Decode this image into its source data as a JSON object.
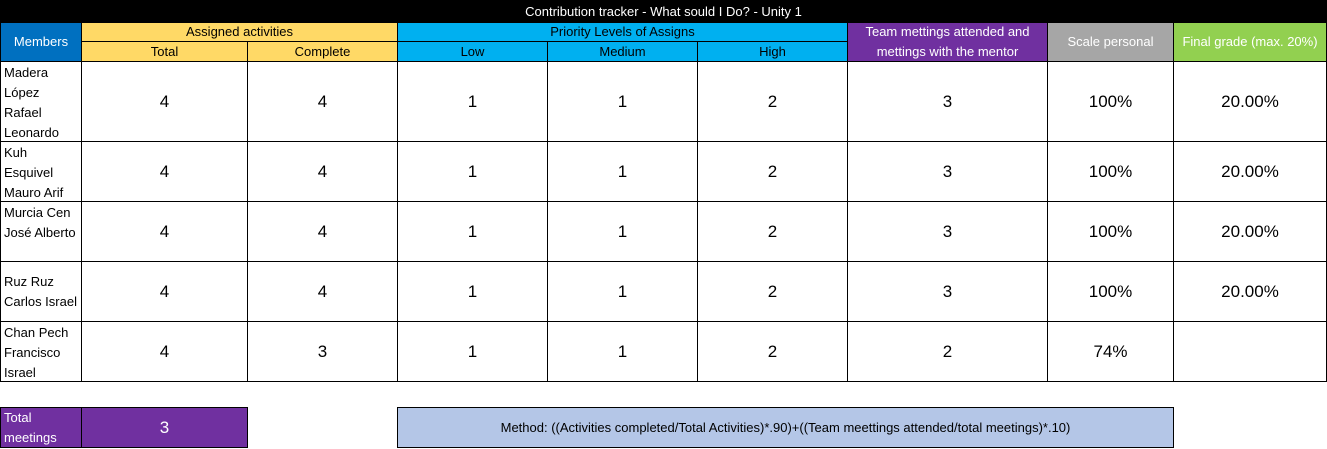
{
  "title": "Contribution tracker - What sould I Do? - Unity 1",
  "headers": {
    "members": "Members",
    "assigned_activities": "Assigned activities",
    "total": "Total",
    "complete": "Complete",
    "priority_levels": "Priority Levels of Assigns",
    "low": "Low",
    "medium": "Medium",
    "high": "High",
    "team_meetings": "Team mettings attended and mettings with the mentor",
    "scale_personal": "Scale personal",
    "final_grade": "Final grade (max. 20%)"
  },
  "rows": [
    {
      "member": "Madera López Rafael Leonardo",
      "total": "4",
      "complete": "4",
      "low": "1",
      "medium": "1",
      "high": "2",
      "meetings": "3",
      "scale": "100%",
      "grade": "20.00%"
    },
    {
      "member": "Kuh Esquivel Mauro Arif",
      "total": "4",
      "complete": "4",
      "low": "1",
      "medium": "1",
      "high": "2",
      "meetings": "3",
      "scale": "100%",
      "grade": "20.00%"
    },
    {
      "member": "Murcia Cen José Alberto",
      "total": "4",
      "complete": "4",
      "low": "1",
      "medium": "1",
      "high": "2",
      "meetings": "3",
      "scale": "100%",
      "grade": "20.00%"
    },
    {
      "member": "Ruz Ruz Carlos Israel",
      "total": "4",
      "complete": "4",
      "low": "1",
      "medium": "1",
      "high": "2",
      "meetings": "3",
      "scale": "100%",
      "grade": "20.00%"
    },
    {
      "member": "Chan Pech Francisco Israel",
      "total": "4",
      "complete": "3",
      "low": "1",
      "medium": "1",
      "high": "2",
      "meetings": "2",
      "scale": "74%",
      "grade": ""
    }
  ],
  "footer": {
    "total_meetings_label": "Total meetings",
    "total_meetings_value": "3",
    "method": "Method: ((Activities completed/Total Activities)*.90)+((Team meettings attended/total meetings)*.10)"
  },
  "colors": {
    "members_header": "#0070c0",
    "assigned_header": "#ffd966",
    "priority_header": "#00b0f0",
    "meetings_header": "#7030a0",
    "scale_header": "#a6a6a6",
    "grade_header": "#92d050",
    "method_box": "#b4c6e7"
  }
}
